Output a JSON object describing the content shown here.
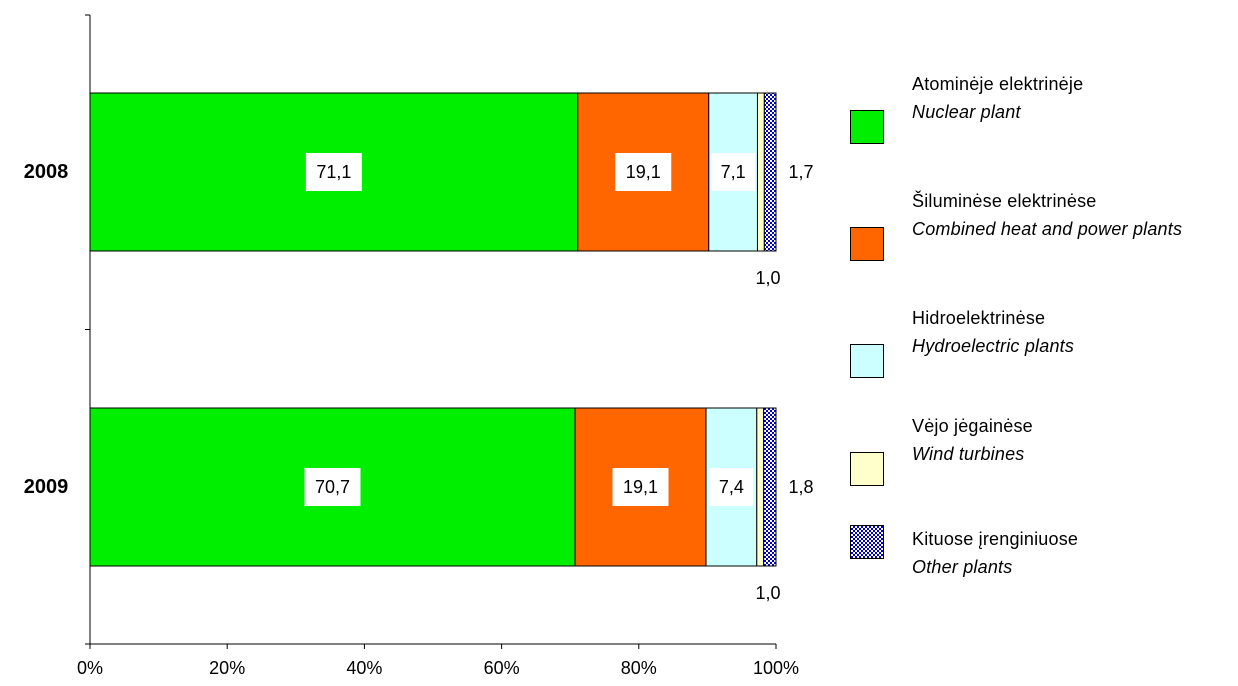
{
  "chart_data": {
    "type": "bar",
    "orientation": "horizontal",
    "stacked": "percent",
    "categories": [
      "2008",
      "2009"
    ],
    "series": [
      {
        "name": "Atominėje elektrinėje / Nuclear plant",
        "values": [
          71.1,
          70.7
        ],
        "color": "#00ee00",
        "labels": [
          "71,1",
          "70,7"
        ]
      },
      {
        "name": "Šiluminėse elektrinėse / Combined heat and power plants",
        "values": [
          19.1,
          19.1
        ],
        "color": "#ff6600",
        "labels": [
          "19,1",
          "19,1"
        ]
      },
      {
        "name": "Hidroelektrinėse / Hydroelectric plants",
        "values": [
          7.1,
          7.4
        ],
        "color": "#ccffff",
        "labels": [
          "7,1",
          "7,4"
        ]
      },
      {
        "name": "Vėjo jėgainėse / Wind turbines",
        "values": [
          1.0,
          1.0
        ],
        "color": "#ffffcc",
        "labels": [
          "1,0",
          "1,0"
        ]
      },
      {
        "name": "Kituose įrenginiuose / Other plants",
        "values": [
          1.7,
          1.8
        ],
        "color": "#0000cc",
        "pattern": "checker",
        "labels": [
          "1,7",
          "1,8"
        ]
      }
    ],
    "xlim": [
      0,
      100
    ],
    "x_ticks": [
      "0%",
      "20%",
      "40%",
      "60%",
      "80%",
      "100%"
    ],
    "legend_position": "right",
    "grid": false
  },
  "legend": [
    {
      "lt": "Atominėje elektrinėje",
      "en": "Nuclear plant",
      "color": "#00ee00"
    },
    {
      "lt": "Šiluminėse elektrinėse",
      "en": "Combined heat and power plants",
      "color": "#ff6600"
    },
    {
      "lt": "Hidroelektrinėse",
      "en": "Hydroelectric plants",
      "color": "#ccffff"
    },
    {
      "lt": "Vėjo jėgainėse",
      "en": "Wind turbines",
      "color": "#ffffcc"
    },
    {
      "lt": "Kituose įrenginiuose",
      "en": "Other plants",
      "color": "#0000cc",
      "pattern": "checker"
    }
  ]
}
